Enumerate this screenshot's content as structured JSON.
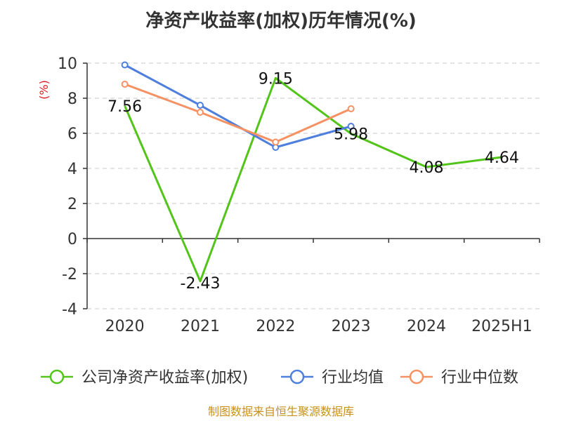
{
  "chart_data": {
    "type": "line",
    "title": "净资产收益率(加权)历年情况(%)",
    "ylabel": "(%)",
    "ylim": [
      -4,
      10
    ],
    "yticks": [
      -4,
      -2,
      0,
      2,
      4,
      6,
      8,
      10
    ],
    "categories": [
      "2020",
      "2021",
      "2022",
      "2023",
      "2024",
      "2025H1"
    ],
    "series": [
      {
        "name": "公司净资产收益率(加权)",
        "color": "#52c41a",
        "values": [
          7.56,
          -2.43,
          9.15,
          5.98,
          4.08,
          4.64
        ],
        "show_labels": true,
        "show_markers": false
      },
      {
        "name": "行业均值",
        "color": "#4f7fdc",
        "values": [
          9.9,
          7.6,
          5.2,
          6.4,
          null,
          null
        ],
        "show_labels": false,
        "show_markers": true
      },
      {
        "name": "行业中位数",
        "color": "#f59163",
        "values": [
          8.8,
          7.2,
          5.5,
          7.4,
          null,
          null
        ],
        "show_labels": false,
        "show_markers": true
      }
    ],
    "grid": true,
    "legend_position": "bottom"
  },
  "source": "制图数据来自恒生聚源数据库"
}
